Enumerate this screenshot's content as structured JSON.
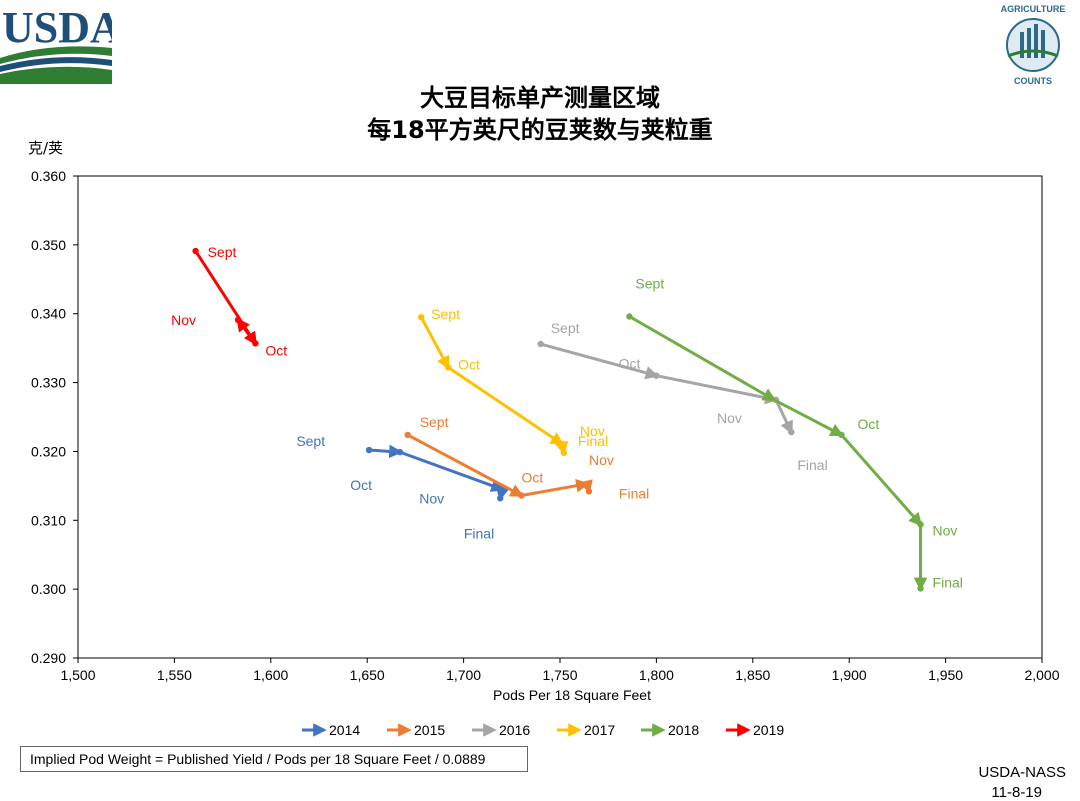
{
  "header": {
    "title_line1": "大豆目标单产测量区域",
    "title_line2": "每18平方英尺的豆荚数与荚粒重",
    "logo_left_text": "USDA",
    "logo_right_text": "AGRICULTURE COUNTS"
  },
  "footer": {
    "formula": "Implied Pod Weight = Published Yield / Pods per 18 Square Feet / 0.0889",
    "org": "USDA-NASS",
    "date": "11-8-19"
  },
  "chart_data": {
    "type": "line",
    "ylabel": "克/荚",
    "xlabel": "Pods Per 18 Square Feet",
    "xlim": [
      1500,
      2000
    ],
    "ylim": [
      0.29,
      0.36
    ],
    "x_ticks": [
      1500,
      1550,
      1600,
      1650,
      1700,
      1750,
      1800,
      1850,
      1900,
      1950,
      2000
    ],
    "x_tick_labels": [
      "1,500",
      "1,550",
      "1,600",
      "1,650",
      "1,700",
      "1,750",
      "1,800",
      "1,850",
      "1,900",
      "1,950",
      "2,000"
    ],
    "y_ticks": [
      0.29,
      0.3,
      0.31,
      0.32,
      0.33,
      0.34,
      0.35,
      0.36
    ],
    "y_tick_labels": [
      "0.290",
      "0.300",
      "0.310",
      "0.320",
      "0.330",
      "0.340",
      "0.350",
      "0.360"
    ],
    "grid": false,
    "legend_position": "bottom",
    "series": [
      {
        "name": "2014",
        "color": "#4472c4",
        "points": [
          {
            "label": "Sept",
            "x": 1651,
            "y": 0.3202
          },
          {
            "label": "Oct",
            "x": 1667,
            "y": 0.3199
          },
          {
            "label": "Nov",
            "x": 1720,
            "y": 0.3145
          },
          {
            "label": "Final",
            "x": 1719,
            "y": 0.3132
          }
        ]
      },
      {
        "name": "2015",
        "color": "#ed7d31",
        "points": [
          {
            "label": "Sept",
            "x": 1671,
            "y": 0.3224
          },
          {
            "label": "Oct",
            "x": 1730,
            "y": 0.3136
          },
          {
            "label": "Nov",
            "x": 1764,
            "y": 0.3153
          },
          {
            "label": "Final",
            "x": 1765,
            "y": 0.3142
          }
        ]
      },
      {
        "name": "2016",
        "color": "#a5a5a5",
        "points": [
          {
            "label": "Sept",
            "x": 1740,
            "y": 0.3356
          },
          {
            "label": "Oct",
            "x": 1800,
            "y": 0.331
          },
          {
            "label": "Nov",
            "x": 1862,
            "y": 0.3275
          },
          {
            "label": "Final",
            "x": 1870,
            "y": 0.3228
          }
        ]
      },
      {
        "name": "2017",
        "color": "#ffc000",
        "points": [
          {
            "label": "Sept",
            "x": 1678,
            "y": 0.3395
          },
          {
            "label": "Oct",
            "x": 1692,
            "y": 0.3322
          },
          {
            "label": "Nov",
            "x": 1751,
            "y": 0.3211
          },
          {
            "label": "Final",
            "x": 1752,
            "y": 0.3198
          }
        ]
      },
      {
        "name": "2018",
        "color": "#70ad47",
        "points": [
          {
            "label": "Sept",
            "x": 1786,
            "y": 0.3396
          },
          {
            "label": "Nov",
            "x": 1861,
            "y": 0.3275
          },
          {
            "label": "Oct",
            "x": 1896,
            "y": 0.3224
          },
          {
            "label": "Nov",
            "x": 1937,
            "y": 0.3094
          },
          {
            "label": "Final",
            "x": 1937,
            "y": 0.3001
          }
        ]
      },
      {
        "name": "2019",
        "color": "#ff0000",
        "points": [
          {
            "label": "Sept",
            "x": 1561,
            "y": 0.3491
          },
          {
            "label": "Oct",
            "x": 1592,
            "y": 0.3357
          },
          {
            "label": "Nov",
            "x": 1583,
            "y": 0.3391
          }
        ]
      }
    ]
  }
}
